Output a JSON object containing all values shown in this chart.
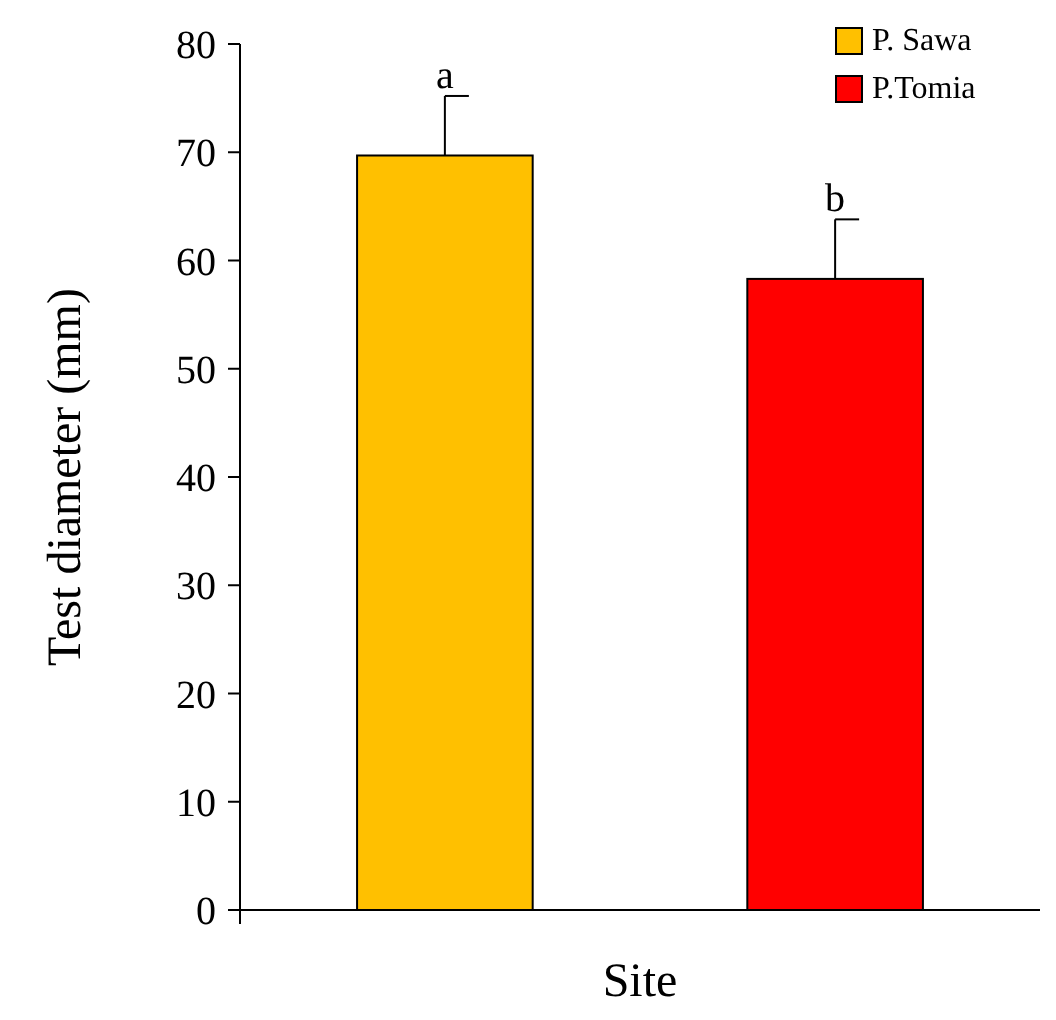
{
  "chart_data": {
    "type": "bar",
    "xlabel": "Site",
    "ylabel": "Test diameter (mm)",
    "categories": [
      null,
      null
    ],
    "series": [
      {
        "name": "P. Sawa",
        "color": "#ffc000",
        "values": [
          69.7,
          null
        ],
        "errors": [
          5.5,
          null
        ]
      },
      {
        "name": "P.Tomia",
        "color": "#ff0000",
        "values": [
          null,
          58.3
        ],
        "errors": [
          null,
          5.5
        ]
      }
    ],
    "ylim": [
      0,
      80
    ],
    "yticks": [
      0,
      10,
      20,
      30,
      40,
      50,
      60,
      70,
      80
    ],
    "grid": false,
    "legend": "top right",
    "annotations": [
      "a",
      "b"
    ]
  }
}
